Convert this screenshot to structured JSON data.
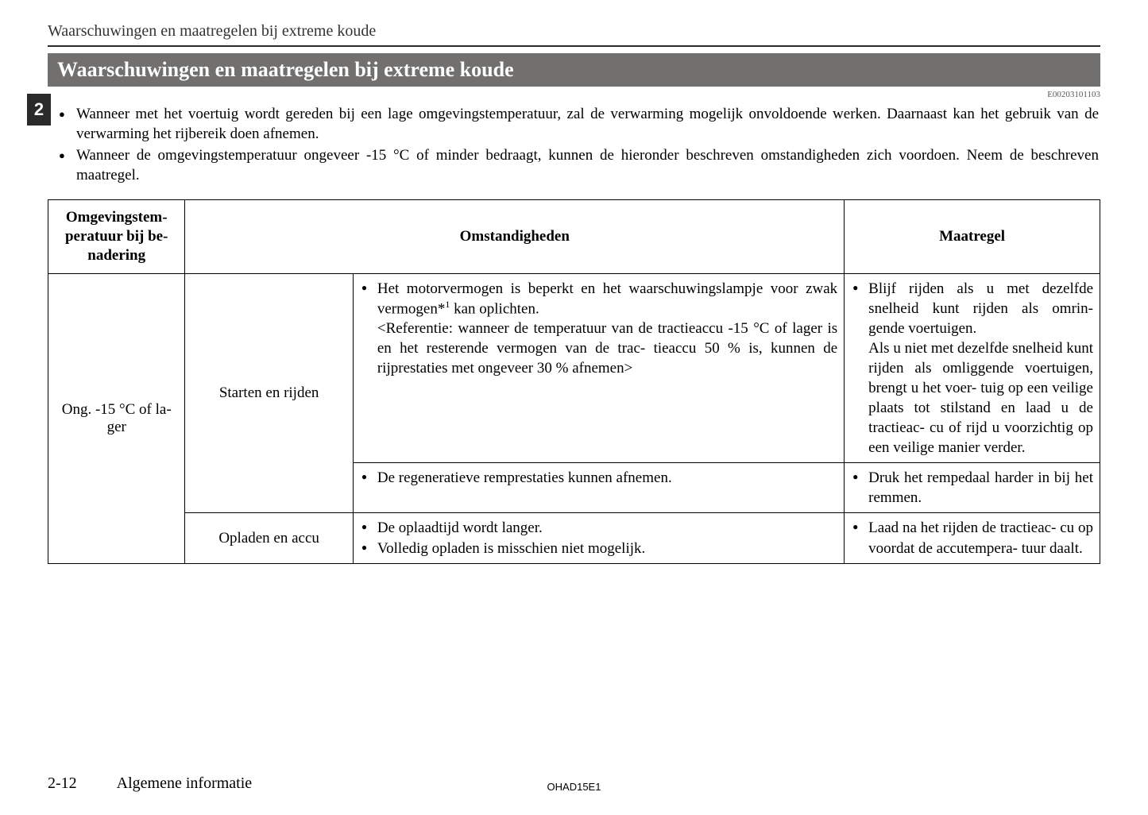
{
  "header": {
    "breadcrumb": "Waarschuwingen en maatregelen bij extreme koude",
    "section_title": "Waarschuwingen en maatregelen bij extreme koude",
    "chapter_number": "2",
    "document_id": "E00203101103"
  },
  "intro": {
    "items": [
      "Wanneer met het voertuig wordt gereden bij een lage omgevingstemperatuur, zal de verwarming mogelijk onvoldoende werken. Daarnaast kan het gebruik van de verwarming het rijbereik doen afnemen.",
      "Wanneer de omgevingstemperatuur ongeveer -15 °C of minder bedraagt, kunnen de hieronder beschreven omstandigheden zich voordoen. Neem de beschreven maatregel."
    ]
  },
  "table": {
    "columns": {
      "temp": "Omgevingstem-\nperatuur bij be-\nnadering",
      "conditions": "Omstandigheden",
      "action": "Maatregel"
    },
    "temp_value": "Ong. -15 °C of la-\nger",
    "rows": [
      {
        "category": "Starten en rijden",
        "condition_bullets": [
          "Het motorvermogen is beperkt en het waarschuwingslamp-\nje voor zwak vermogen*1 kan oplichten."
        ],
        "condition_reference": "<Referentie: wanneer de temperatuur van de tractieaccu -15 °C of lager is en het resterende vermogen van de trac-\ntieaccu 50 % is, kunnen de rijprestaties met ongeveer 30 % afnemen>",
        "action_bullets": [
          "Blijf rijden als u met dezelfde snelheid kunt rijden als omrin-\ngende voertuigen."
        ],
        "action_extra": "Als u niet met dezelfde snelheid kunt rijden als omliggende voertuigen, brengt u het voer-\ntuig op een veilige plaats tot stilstand en laad u de tractieac-\ncu of rijd u voorzichtig op een veilige manier verder."
      },
      {
        "category": "",
        "condition_bullets": [
          "De regeneratieve remprestaties kunnen afnemen."
        ],
        "action_bullets": [
          "Druk het rempedaal harder in bij het remmen."
        ]
      },
      {
        "category": "Opladen en accu",
        "condition_bullets": [
          "De oplaadtijd wordt langer.",
          "Volledig opladen is misschien niet mogelijk."
        ],
        "action_bullets": [
          "Laad na het rijden de tractieac-\ncu op voordat de accutempera-\ntuur daalt."
        ]
      }
    ]
  },
  "footer": {
    "page_number": "2-12",
    "section_name": "Algemene informatie",
    "doc_code": "OHAD15E1"
  },
  "styling": {
    "header_bar_bg": "#71706f",
    "header_bar_text": "#ffffff",
    "chapter_tab_bg": "#2a2a2a",
    "body_font": "Times New Roman",
    "body_font_size_pt": 14,
    "table_border_color": "#000000"
  }
}
